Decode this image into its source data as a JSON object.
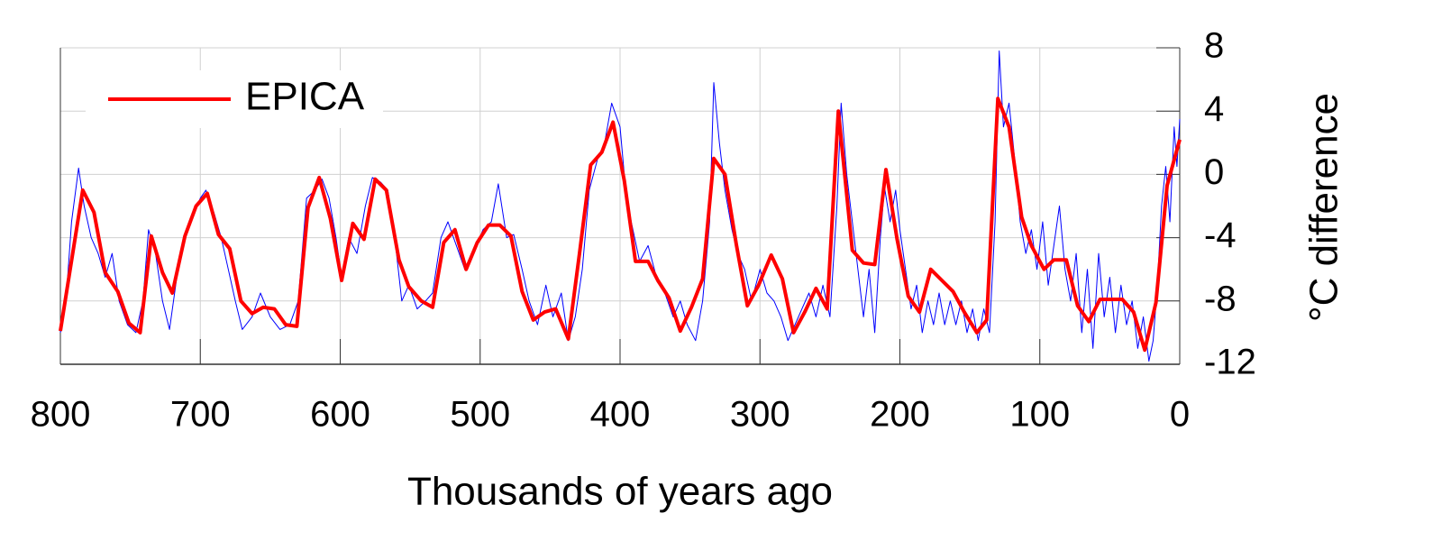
{
  "chart_data": {
    "type": "line",
    "x_label": "Thousands of years ago",
    "y_label": "°C difference",
    "xlim": [
      800,
      0
    ],
    "xticks": [
      800,
      700,
      600,
      500,
      400,
      300,
      200,
      100,
      0
    ],
    "ylim": [
      -12,
      8
    ],
    "yticks": [
      -12,
      -8,
      -4,
      0,
      4,
      8
    ],
    "grid": true,
    "y_axis_side": "right",
    "legend": "upper left",
    "series": [
      {
        "color": "#0000ff",
        "x": [
          800,
          796,
          792,
          787,
          783,
          778,
          773,
          768,
          763,
          758,
          752,
          746,
          741,
          737,
          732,
          727,
          722,
          716,
          711,
          705,
          700,
          696,
          690,
          685,
          680,
          675,
          670,
          663,
          657,
          650,
          643,
          636,
          630,
          624,
          618,
          613,
          608,
          603,
          599,
          594,
          588,
          582,
          577,
          571,
          566,
          561,
          556,
          551,
          545,
          539,
          534,
          528,
          523,
          517,
          511,
          505,
          498,
          492,
          487,
          481,
          476,
          470,
          465,
          459,
          453,
          448,
          442,
          437,
          432,
          427,
          422,
          416,
          411,
          406,
          400,
          396,
          392,
          386,
          380,
          374,
          368,
          362,
          357,
          352,
          346,
          341,
          336,
          333,
          329,
          325,
          320,
          316,
          311,
          306,
          300,
          295,
          290,
          285,
          280,
          275,
          270,
          265,
          260,
          255,
          250,
          245,
          242,
          238,
          234,
          230,
          226,
          222,
          218,
          214,
          211,
          207,
          203,
          200,
          196,
          192,
          188,
          184,
          180,
          176,
          172,
          168,
          164,
          160,
          156,
          152,
          148,
          144,
          140,
          136,
          132,
          129,
          126,
          122,
          118,
          114,
          110,
          106,
          102,
          98,
          94,
          90,
          86,
          82,
          78,
          74,
          70,
          66,
          62,
          58,
          54,
          50,
          46,
          42,
          38,
          34,
          30,
          26,
          22,
          19,
          16,
          13,
          10,
          7,
          4,
          2,
          0
        ],
        "values": [
          -10,
          -8,
          -3,
          0.4,
          -2,
          -4,
          -5,
          -6.5,
          -5,
          -8,
          -9.5,
          -10,
          -8,
          -3.5,
          -5,
          -8,
          -9.8,
          -6,
          -4,
          -2.5,
          -1.5,
          -1,
          -2.5,
          -4,
          -6,
          -8,
          -9.8,
          -9,
          -7.5,
          -9,
          -9.8,
          -9.5,
          -8,
          -1.5,
          -1,
          -0.3,
          -1.5,
          -4,
          -6.5,
          -4,
          -5,
          -2,
          -0.2,
          -0.5,
          -1,
          -4,
          -8,
          -7,
          -8.5,
          -8,
          -7.5,
          -4,
          -3,
          -4.5,
          -6,
          -5,
          -3.5,
          -3,
          -0.6,
          -4,
          -3.8,
          -6,
          -8,
          -9.5,
          -7,
          -9,
          -7.5,
          -10.5,
          -9,
          -6,
          -1,
          1,
          2,
          4.5,
          3,
          -1,
          -3,
          -5.5,
          -4.5,
          -6.5,
          -7.5,
          -9,
          -8,
          -9.5,
          -10.5,
          -8,
          -3,
          5.8,
          2,
          -1,
          -3.5,
          -5,
          -6,
          -8,
          -6,
          -7.5,
          -8,
          -9,
          -10.5,
          -9.5,
          -8.5,
          -7.5,
          -9,
          -7,
          -9,
          -2,
          4.5,
          0,
          -3,
          -6,
          -9,
          -6,
          -10,
          -4,
          -0.8,
          -3,
          -1,
          -3.5,
          -6,
          -8.5,
          -7,
          -10,
          -8,
          -9.5,
          -7.5,
          -9.5,
          -8,
          -9.5,
          -8,
          -10,
          -8.5,
          -10.5,
          -8.5,
          -10,
          -3,
          7.8,
          3,
          4.5,
          1,
          -3,
          -5,
          -3.5,
          -6,
          -3,
          -7,
          -4.5,
          -2,
          -6,
          -8,
          -5,
          -10,
          -6,
          -11,
          -5,
          -9,
          -6.5,
          -10,
          -7,
          -9.5,
          -8,
          -11,
          -9,
          -11.8,
          -10.5,
          -7,
          -2,
          0.5,
          -3,
          3,
          0.5,
          3.5
        ]
      },
      {
        "name": "EPICA",
        "color": "#ff0000",
        "x": [
          800,
          784,
          776,
          768,
          759,
          751,
          743,
          735,
          727,
          720,
          711,
          703,
          695,
          687,
          679,
          671,
          663,
          655,
          647,
          639,
          631,
          623,
          615,
          607,
          599,
          591,
          583,
          575,
          567,
          558,
          551,
          542,
          534,
          526,
          518,
          510,
          502,
          494,
          486,
          478,
          470,
          462,
          454,
          446,
          437,
          429,
          421,
          413,
          405,
          397,
          389,
          380,
          373,
          365,
          357,
          349,
          341,
          333,
          325,
          317,
          309,
          301,
          292,
          284,
          276,
          268,
          260,
          252,
          244,
          234,
          226,
          218,
          210,
          202,
          194,
          186,
          178,
          170,
          162,
          154,
          145,
          138,
          130,
          122,
          113,
          106,
          97,
          90,
          81,
          73,
          65,
          57,
          49,
          41,
          33,
          25,
          17,
          9,
          0
        ],
        "values": [
          -9.9,
          -1,
          -2.4,
          -6.2,
          -7.4,
          -9.4,
          -10,
          -3.9,
          -6.2,
          -7.5,
          -3.9,
          -2,
          -1.2,
          -3.8,
          -4.7,
          -8,
          -8.8,
          -8.4,
          -8.5,
          -9.5,
          -9.6,
          -2.1,
          -0.2,
          -2.8,
          -6.7,
          -3.1,
          -4.1,
          -0.3,
          -1,
          -5.4,
          -7.1,
          -8,
          -8.4,
          -4.3,
          -3.5,
          -6,
          -4.3,
          -3.2,
          -3.2,
          -3.9,
          -7.4,
          -9.2,
          -8.7,
          -8.5,
          -10.4,
          -5,
          0.6,
          1.4,
          3.3,
          -0.4,
          -5.5,
          -5.5,
          -6.7,
          -7.8,
          -9.9,
          -8.4,
          -6.6,
          1,
          0,
          -4.4,
          -8.3,
          -7,
          -5.1,
          -6.6,
          -10,
          -8.7,
          -7.2,
          -8.5,
          4,
          -4.8,
          -5.6,
          -5.7,
          0.3,
          -4.1,
          -7.7,
          -8.7,
          -6,
          -6.7,
          -7.4,
          -8.7,
          -10,
          -9.2,
          4.8,
          3,
          -2.7,
          -4.5,
          -6,
          -5.4,
          -5.4,
          -8.3,
          -9.3,
          -7.9,
          -7.9,
          -7.9,
          -8.7,
          -11.1,
          -8.1,
          -0.7,
          2.2
        ]
      }
    ]
  }
}
